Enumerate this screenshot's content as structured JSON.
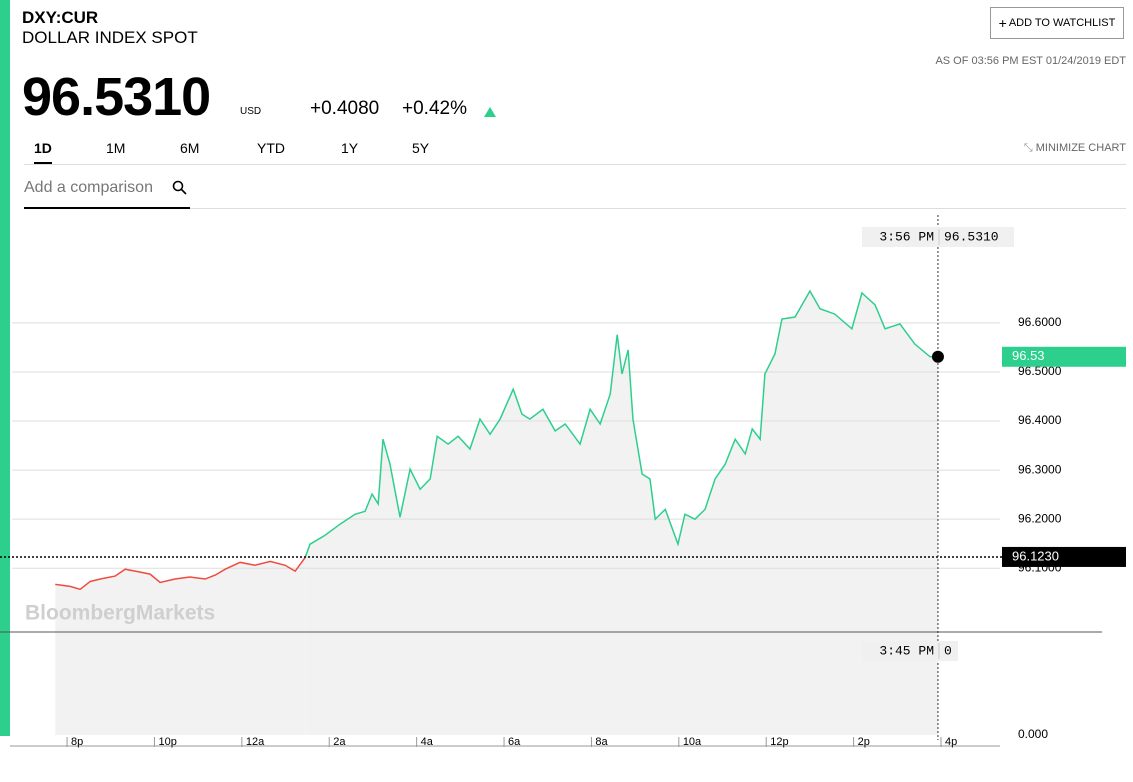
{
  "header": {
    "ticker": "DXY:CUR",
    "name": "DOLLAR INDEX SPOT",
    "price": "96.5310",
    "currency": "USD",
    "change": "+0.4080",
    "change_pct": "+0.42%",
    "as_of": "AS OF 03:56 PM EST 01/24/2019 EDT",
    "watchlist": "ADD TO WATCHLIST",
    "minimize": "MINIMIZE CHART",
    "comparison_placeholder": "Add a comparison",
    "tabs": [
      "1D",
      "1M",
      "6M",
      "YTD",
      "1Y",
      "5Y"
    ],
    "active_tab": 0
  },
  "chart_data": {
    "type": "line",
    "watermark": "BloombergMarkets",
    "series": [
      {
        "name": "below previous close",
        "color": "#ef4b3f",
        "x": [
          19.73,
          20.07,
          20.3,
          20.53,
          20.76,
          21.1,
          21.33,
          21.56,
          21.9,
          22.13,
          22.47,
          22.81,
          23.16,
          23.39,
          23.62,
          23.96,
          24.3,
          24.65,
          24.99,
          25.22,
          25.45
        ],
        "values": [
          96.067,
          96.063,
          96.057,
          96.073,
          96.078,
          96.084,
          96.098,
          96.094,
          96.088,
          96.071,
          96.078,
          96.082,
          96.078,
          96.086,
          96.098,
          96.112,
          96.106,
          96.114,
          96.106,
          96.094,
          96.122
        ]
      },
      {
        "name": "above previous close",
        "color": "#2dcf8d",
        "x": [
          25.45,
          25.56,
          25.9,
          26.25,
          26.59,
          26.82,
          26.98,
          27.12,
          27.23,
          27.39,
          27.62,
          27.85,
          28.08,
          28.31,
          28.47,
          28.72,
          28.95,
          29.22,
          29.45,
          29.68,
          29.91,
          30.21,
          30.41,
          30.59,
          30.89,
          31.17,
          31.4,
          31.74,
          31.97,
          32.2,
          32.43,
          32.59,
          32.7,
          32.84,
          32.95,
          33.16,
          33.34,
          33.46,
          33.69,
          33.98,
          34.14,
          34.37,
          34.6,
          34.83,
          35.06,
          35.29,
          35.52,
          35.68,
          35.86,
          35.97,
          36.2,
          36.36,
          36.66,
          37.0,
          37.23,
          37.57,
          37.96,
          38.19,
          38.49,
          38.72,
          39.06,
          39.4,
          39.75,
          39.93
        ],
        "values": [
          96.122,
          96.149,
          96.167,
          96.19,
          96.21,
          96.216,
          96.251,
          96.231,
          96.363,
          96.312,
          96.204,
          96.302,
          96.261,
          96.282,
          96.369,
          96.353,
          96.369,
          96.343,
          96.404,
          96.373,
          96.404,
          96.465,
          96.414,
          96.404,
          96.424,
          96.38,
          96.394,
          96.353,
          96.424,
          96.394,
          96.455,
          96.576,
          96.496,
          96.545,
          96.404,
          96.292,
          96.282,
          96.2,
          96.22,
          96.149,
          96.21,
          96.2,
          96.22,
          96.282,
          96.312,
          96.363,
          96.333,
          96.384,
          96.363,
          96.496,
          96.537,
          96.608,
          96.612,
          96.665,
          96.629,
          96.618,
          96.588,
          96.661,
          96.637,
          96.588,
          96.598,
          96.557,
          96.531,
          96.531
        ]
      }
    ],
    "xlim": [
      18.74,
      41.35
    ],
    "xticks": [
      {
        "value": 20,
        "label": "8p"
      },
      {
        "value": 22,
        "label": "10p"
      },
      {
        "value": 24,
        "label": "12a"
      },
      {
        "value": 26,
        "label": "2a"
      },
      {
        "value": 28,
        "label": "4a"
      },
      {
        "value": 30,
        "label": "6a"
      },
      {
        "value": 32,
        "label": "8a"
      },
      {
        "value": 34,
        "label": "10a"
      },
      {
        "value": 36,
        "label": "12p"
      },
      {
        "value": 38,
        "label": "2p"
      },
      {
        "value": 40,
        "label": "4p"
      }
    ],
    "ylim": [
      95.97,
      96.82
    ],
    "yticks": [
      {
        "value": 96.1,
        "label": "96.1000"
      },
      {
        "value": 96.2,
        "label": "96.2000"
      },
      {
        "value": 96.3,
        "label": "96.3000"
      },
      {
        "value": 96.4,
        "label": "96.4000"
      },
      {
        "value": 96.5,
        "label": "96.5000"
      },
      {
        "value": 96.6,
        "label": "96.6000"
      }
    ],
    "grid": true,
    "previous_close": 96.123,
    "previous_close_label": "96.1230",
    "last_value": 96.531,
    "last_label": "96.53",
    "tooltip": {
      "time": "3:56 PM",
      "x": 39.93,
      "label": "96.5310"
    },
    "lower_pane": {
      "ylim": [
        0,
        1
      ],
      "yticks": [
        {
          "value": 0,
          "label": "0.000"
        }
      ],
      "tooltip": {
        "time": "3:45 PM",
        "value": 0
      }
    }
  }
}
